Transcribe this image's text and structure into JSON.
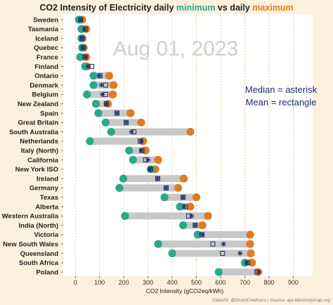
{
  "chart_data": {
    "type": "dumbbell",
    "title": {
      "prefix": "CO2 Intensity of Electricity daily ",
      "min_word": "minimum",
      "middle": " vs daily ",
      "max_word": "maximum"
    },
    "date_label": "Aug 01, 2023",
    "annotations": [
      "Median = asterisk",
      "Mean = rectangle"
    ],
    "xlabel": "CO2 Intensity (gCO2eq/kWh)",
    "xlim": [
      -50,
      980
    ],
    "xticks": [
      0,
      100,
      200,
      300,
      400,
      500,
      600,
      700,
      800,
      900
    ],
    "grid": "vertical dotted",
    "credit": "DataViz: @GrantChalmers | Source: api.electricitymap.org",
    "colors": {
      "min": "#2aa88a",
      "max": "#e07b22",
      "bar": "#c8c8c8",
      "marker": "#1d2b6b",
      "title_min": "#2aa88a",
      "title_max": "#e07b22",
      "grid": "#c9a84a"
    },
    "regions": [
      {
        "name": "Sweden",
        "min": 15,
        "max": 28,
        "median": 22,
        "mean": 22
      },
      {
        "name": "Tasmania",
        "min": 25,
        "max": 45,
        "median": 38,
        "mean": 42
      },
      {
        "name": "Iceland",
        "min": 25,
        "max": 30,
        "median": 28,
        "mean": 28
      },
      {
        "name": "Quebec",
        "min": 28,
        "max": 35,
        "median": 32,
        "mean": 32
      },
      {
        "name": "France",
        "min": 20,
        "max": 45,
        "median": 42,
        "mean": 40
      },
      {
        "name": "Finland",
        "min": 40,
        "max": 48,
        "median": 52,
        "mean": 68
      },
      {
        "name": "Ontario",
        "min": 75,
        "max": 140,
        "median": 100,
        "mean": 102
      },
      {
        "name": "Denmark",
        "min": 75,
        "max": 158,
        "median": 108,
        "mean": 125
      },
      {
        "name": "Belgium",
        "min": 48,
        "max": 155,
        "median": 112,
        "mean": 125
      },
      {
        "name": "New Zealand",
        "min": 85,
        "max": 135,
        "median": 128,
        "mean": 128
      },
      {
        "name": "Spain",
        "min": 95,
        "max": 228,
        "median": 172,
        "mean": 172
      },
      {
        "name": "Great Britain",
        "min": 125,
        "max": 272,
        "median": 210,
        "mean": 210
      },
      {
        "name": "South Australia",
        "min": 148,
        "max": 475,
        "median": 232,
        "mean": 242
      },
      {
        "name": "Netherlands",
        "min": 60,
        "max": 280,
        "median": 272,
        "mean": 268
      },
      {
        "name": "Italy (North)",
        "min": 222,
        "max": 290,
        "median": 272,
        "mean": 275
      },
      {
        "name": "California",
        "min": 238,
        "max": 342,
        "median": 300,
        "mean": 290
      },
      {
        "name": "New York ISO",
        "min": 312,
        "max": 330,
        "median": 308,
        "mean": 310
      },
      {
        "name": "Ireland",
        "min": 198,
        "max": 448,
        "median": 340,
        "mean": 340
      },
      {
        "name": "Germany",
        "min": 182,
        "max": 425,
        "median": 375,
        "mean": 375
      },
      {
        "name": "Texas",
        "min": 368,
        "max": 500,
        "median": 445,
        "mean": 445
      },
      {
        "name": "Alberta",
        "min": 432,
        "max": 475,
        "median": 450,
        "mean": 455
      },
      {
        "name": "Western Australia",
        "min": 205,
        "max": 548,
        "median": 480,
        "mean": 468
      },
      {
        "name": "India (North)",
        "min": 445,
        "max": 525,
        "median": 495,
        "mean": 495
      },
      {
        "name": "Victoria",
        "min": 505,
        "max": 722,
        "median": 525,
        "mean": 522
      },
      {
        "name": "New South Wales",
        "min": 342,
        "max": 722,
        "median": 612,
        "mean": 568
      },
      {
        "name": "Queensland",
        "min": 400,
        "max": 725,
        "median": 680,
        "mean": 608
      },
      {
        "name": "South Africa",
        "min": 700,
        "max": 730,
        "median": 708,
        "mean": 712
      },
      {
        "name": "Poland",
        "min": 592,
        "max": 755,
        "median": 758,
        "mean": 750
      }
    ]
  }
}
